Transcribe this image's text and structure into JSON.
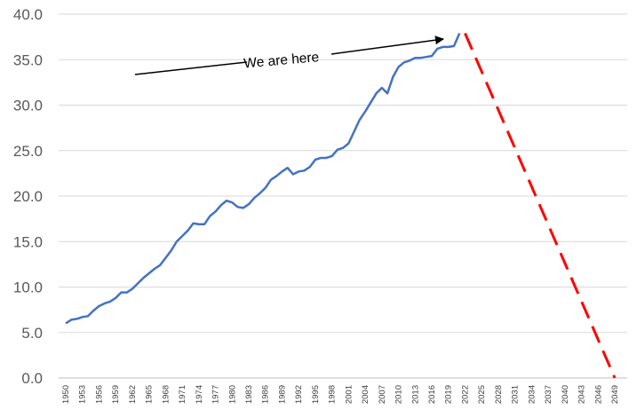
{
  "chart_data": {
    "type": "line",
    "title": "",
    "xlabel": "",
    "ylabel": "",
    "ylim": [
      0,
      40
    ],
    "y_ticks": [
      "0.0",
      "5.0",
      "10.0",
      "15.0",
      "20.0",
      "25.0",
      "30.0",
      "35.0",
      "40.0"
    ],
    "x_ticks": [
      "1950",
      "1953",
      "1956",
      "1959",
      "1962",
      "1965",
      "1968",
      "1971",
      "1974",
      "1977",
      "1980",
      "1983",
      "1986",
      "1989",
      "1992",
      "1995",
      "1998",
      "2001",
      "2004",
      "2007",
      "2010",
      "2013",
      "2016",
      "2019",
      "2022",
      "2025",
      "2028",
      "2031",
      "2034",
      "2037",
      "2040",
      "2043",
      "2046",
      "2049"
    ],
    "x_range": [
      1950,
      2049
    ],
    "grid": "horizontal",
    "legend": "none",
    "series": [
      {
        "style": "solid",
        "color": "#4472C4",
        "x": [
          1950,
          1951,
          1952,
          1953,
          1954,
          1955,
          1956,
          1957,
          1958,
          1959,
          1960,
          1961,
          1962,
          1963,
          1964,
          1965,
          1966,
          1967,
          1968,
          1969,
          1970,
          1971,
          1972,
          1973,
          1974,
          1975,
          1976,
          1977,
          1978,
          1979,
          1980,
          1981,
          1982,
          1983,
          1984,
          1985,
          1986,
          1987,
          1988,
          1989,
          1990,
          1991,
          1992,
          1993,
          1994,
          1995,
          1996,
          1997,
          1998,
          1999,
          2000,
          2001,
          2002,
          2003,
          2004,
          2005,
          2006,
          2007,
          2008,
          2009,
          2010,
          2011,
          2012,
          2013,
          2014,
          2015,
          2016,
          2017,
          2018,
          2019,
          2020,
          2021
        ],
        "values": [
          6.0,
          6.4,
          6.5,
          6.7,
          6.8,
          7.4,
          7.9,
          8.2,
          8.4,
          8.8,
          9.4,
          9.4,
          9.8,
          10.4,
          11.0,
          11.5,
          12.0,
          12.4,
          13.2,
          14.0,
          15.0,
          15.6,
          16.2,
          17.0,
          16.9,
          16.9,
          17.8,
          18.3,
          19.0,
          19.5,
          19.3,
          18.8,
          18.7,
          19.1,
          19.8,
          20.3,
          20.9,
          21.8,
          22.2,
          22.7,
          23.1,
          22.4,
          22.7,
          22.8,
          23.2,
          24.0,
          24.2,
          24.2,
          24.4,
          25.1,
          25.3,
          25.8,
          27.1,
          28.4,
          29.3,
          30.3,
          31.3,
          31.9,
          31.3,
          33.1,
          34.2,
          34.7,
          34.9,
          35.2,
          35.2,
          35.3,
          35.4,
          36.2,
          36.4,
          36.4,
          36.5,
          37.9
        ]
      },
      {
        "style": "dashed",
        "color": "#FF0000",
        "x": [
          2022,
          2049
        ],
        "values": [
          37.9,
          0.0
        ]
      }
    ],
    "annotations": [
      {
        "text": "We are here"
      }
    ]
  }
}
